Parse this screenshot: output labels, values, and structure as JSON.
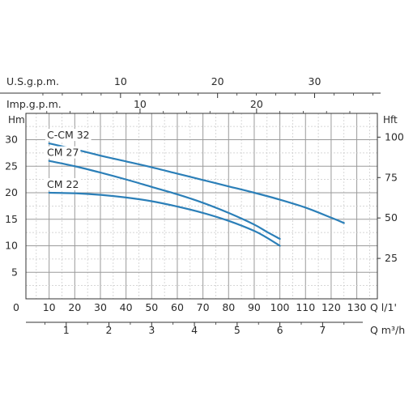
{
  "chart_data": {
    "type": "line",
    "title": "",
    "colors": {
      "series": "#2b7fb8",
      "grid_major": "#9a9a9a",
      "grid_minor": "#c8c8c8",
      "axis": "#333333"
    },
    "axes": {
      "left": {
        "label": "Hm",
        "ticks": [
          0,
          5,
          10,
          15,
          20,
          25,
          30
        ],
        "range": [
          0,
          35
        ]
      },
      "right": {
        "label": "Hft",
        "ticks": [
          25,
          50,
          75,
          100
        ]
      },
      "bottom_flow_lpm": {
        "label": "Q l/1'",
        "ticks": [
          10,
          20,
          30,
          40,
          50,
          60,
          70,
          80,
          90,
          100,
          110,
          120,
          130
        ],
        "range": [
          0,
          135
        ]
      },
      "bottom_flow_m3h": {
        "label": "Q m³/h",
        "ticks": [
          1,
          2,
          3,
          4,
          5,
          6,
          7
        ]
      },
      "top_usgpm": {
        "label": "U.S.g.p.m.",
        "ticks": [
          10,
          20,
          30
        ]
      },
      "top_impgpm": {
        "label": "Imp.g.p.m.",
        "ticks": [
          10,
          20
        ]
      }
    },
    "zero_label": "0",
    "grid": true,
    "series": [
      {
        "name": "C-CM 32",
        "x": [
          10,
          20,
          30,
          40,
          50,
          60,
          70,
          80,
          90,
          100,
          110,
          120,
          125
        ],
        "y": [
          29.3,
          28.2,
          27.0,
          25.9,
          24.8,
          23.6,
          22.4,
          21.2,
          20.0,
          18.7,
          17.2,
          15.3,
          14.3
        ]
      },
      {
        "name": "CM 27",
        "x": [
          10,
          20,
          30,
          40,
          50,
          60,
          70,
          80,
          90,
          95,
          100
        ],
        "y": [
          26.0,
          25.0,
          23.8,
          22.5,
          21.1,
          19.7,
          18.1,
          16.2,
          14.0,
          12.6,
          11.3
        ]
      },
      {
        "name": "CM 22",
        "x": [
          10,
          20,
          30,
          40,
          50,
          60,
          70,
          80,
          90,
          95,
          100
        ],
        "y": [
          20.0,
          19.9,
          19.6,
          19.1,
          18.4,
          17.4,
          16.2,
          14.7,
          12.8,
          11.5,
          10.0
        ]
      }
    ]
  }
}
